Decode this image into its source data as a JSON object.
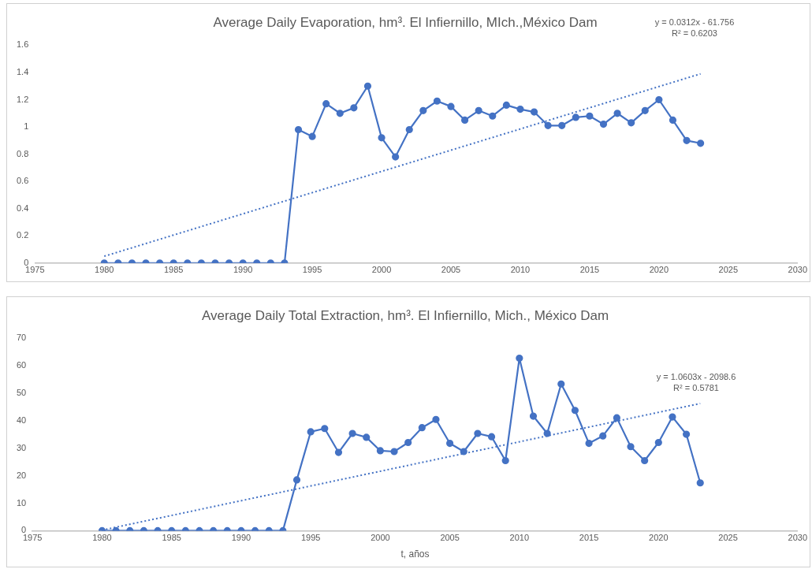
{
  "chart_data": [
    {
      "type": "line",
      "title": "Average Daily Evaporation, hm³. El Infiernillo, MIch.,México Dam",
      "annotations": [
        "y = 0.0312x - 61.756",
        "R² = 0.6203"
      ],
      "xlim": [
        1975,
        2030
      ],
      "xticks": [
        1975,
        1980,
        1985,
        1990,
        1995,
        2000,
        2005,
        2010,
        2015,
        2020,
        2025,
        2030
      ],
      "ylim": [
        0,
        1.6
      ],
      "yticks": [
        0,
        0.2,
        0.4,
        0.6,
        0.8,
        1,
        1.2,
        1.4,
        1.6
      ],
      "series": [
        {
          "type": "line",
          "color": "#4472c4",
          "marker": "circle",
          "line_style": "solid",
          "x": [
            1980,
            1981,
            1982,
            1983,
            1984,
            1985,
            1986,
            1987,
            1988,
            1989,
            1990,
            1991,
            1992,
            1993,
            1994,
            1995,
            1996,
            1997,
            1998,
            1999,
            2000,
            2001,
            2002,
            2003,
            2004,
            2005,
            2006,
            2007,
            2008,
            2009,
            2010,
            2011,
            2012,
            2013,
            2014,
            2015,
            2016,
            2017,
            2018,
            2019,
            2020,
            2021,
            2022,
            2023
          ],
          "values": [
            0,
            0,
            0,
            0,
            0,
            0,
            0,
            0,
            0,
            0,
            0,
            0,
            0,
            0,
            0.98,
            0.93,
            1.17,
            1.1,
            1.14,
            1.3,
            0.92,
            0.78,
            0.98,
            1.12,
            1.19,
            1.15,
            1.05,
            1.12,
            1.08,
            1.16,
            1.13,
            1.11,
            1.01,
            1.01,
            1.07,
            1.08,
            1.02,
            1.1,
            1.03,
            1.12,
            1.2,
            1.05,
            0.9,
            0.88
          ]
        },
        {
          "type": "line",
          "color": "#4472c4",
          "marker": "none",
          "line_style": "dotted",
          "x": [
            1980,
            2023
          ],
          "values": [
            0.05,
            1.39
          ]
        }
      ]
    },
    {
      "type": "line",
      "title": "Average Daily Total Extraction, hm³. El Infiernillo, Mich., México Dam",
      "xlabel": "t, años",
      "annotations": [
        "y = 1.0603x - 2098.6",
        "R² = 0.5781"
      ],
      "xlim": [
        1975,
        2030
      ],
      "xticks": [
        1975,
        1980,
        1985,
        1990,
        1995,
        2000,
        2005,
        2010,
        2015,
        2020,
        2025,
        2030
      ],
      "ylim": [
        0,
        70
      ],
      "yticks": [
        0,
        10,
        20,
        30,
        40,
        50,
        60,
        70
      ],
      "series": [
        {
          "type": "line",
          "color": "#4472c4",
          "marker": "circle",
          "line_style": "solid",
          "x": [
            1980,
            1981,
            1982,
            1983,
            1984,
            1985,
            1986,
            1987,
            1988,
            1989,
            1990,
            1991,
            1992,
            1993,
            1994,
            1995,
            1996,
            1997,
            1998,
            1999,
            2000,
            2001,
            2002,
            2003,
            2004,
            2005,
            2006,
            2007,
            2008,
            2009,
            2010,
            2011,
            2012,
            2013,
            2014,
            2015,
            2016,
            2017,
            2018,
            2019,
            2020,
            2021,
            2022,
            2023
          ],
          "values": [
            0,
            0,
            0,
            0,
            0,
            0,
            0,
            0,
            0,
            0,
            0,
            0,
            0,
            0,
            18.5,
            36,
            37.2,
            28.5,
            35.4,
            34,
            29.1,
            28.8,
            32.1,
            37.5,
            40.5,
            31.8,
            28.8,
            35.4,
            34.2,
            25.5,
            62.8,
            41.7,
            35.4,
            53.4,
            43.8,
            31.8,
            34.5,
            41.1,
            30.6,
            25.5,
            32.1,
            41.4,
            35.1,
            17.4
          ]
        },
        {
          "type": "line",
          "color": "#4472c4",
          "marker": "none",
          "line_style": "dotted",
          "x": [
            1980,
            2023
          ],
          "values": [
            0.2,
            46.3
          ]
        }
      ]
    }
  ]
}
